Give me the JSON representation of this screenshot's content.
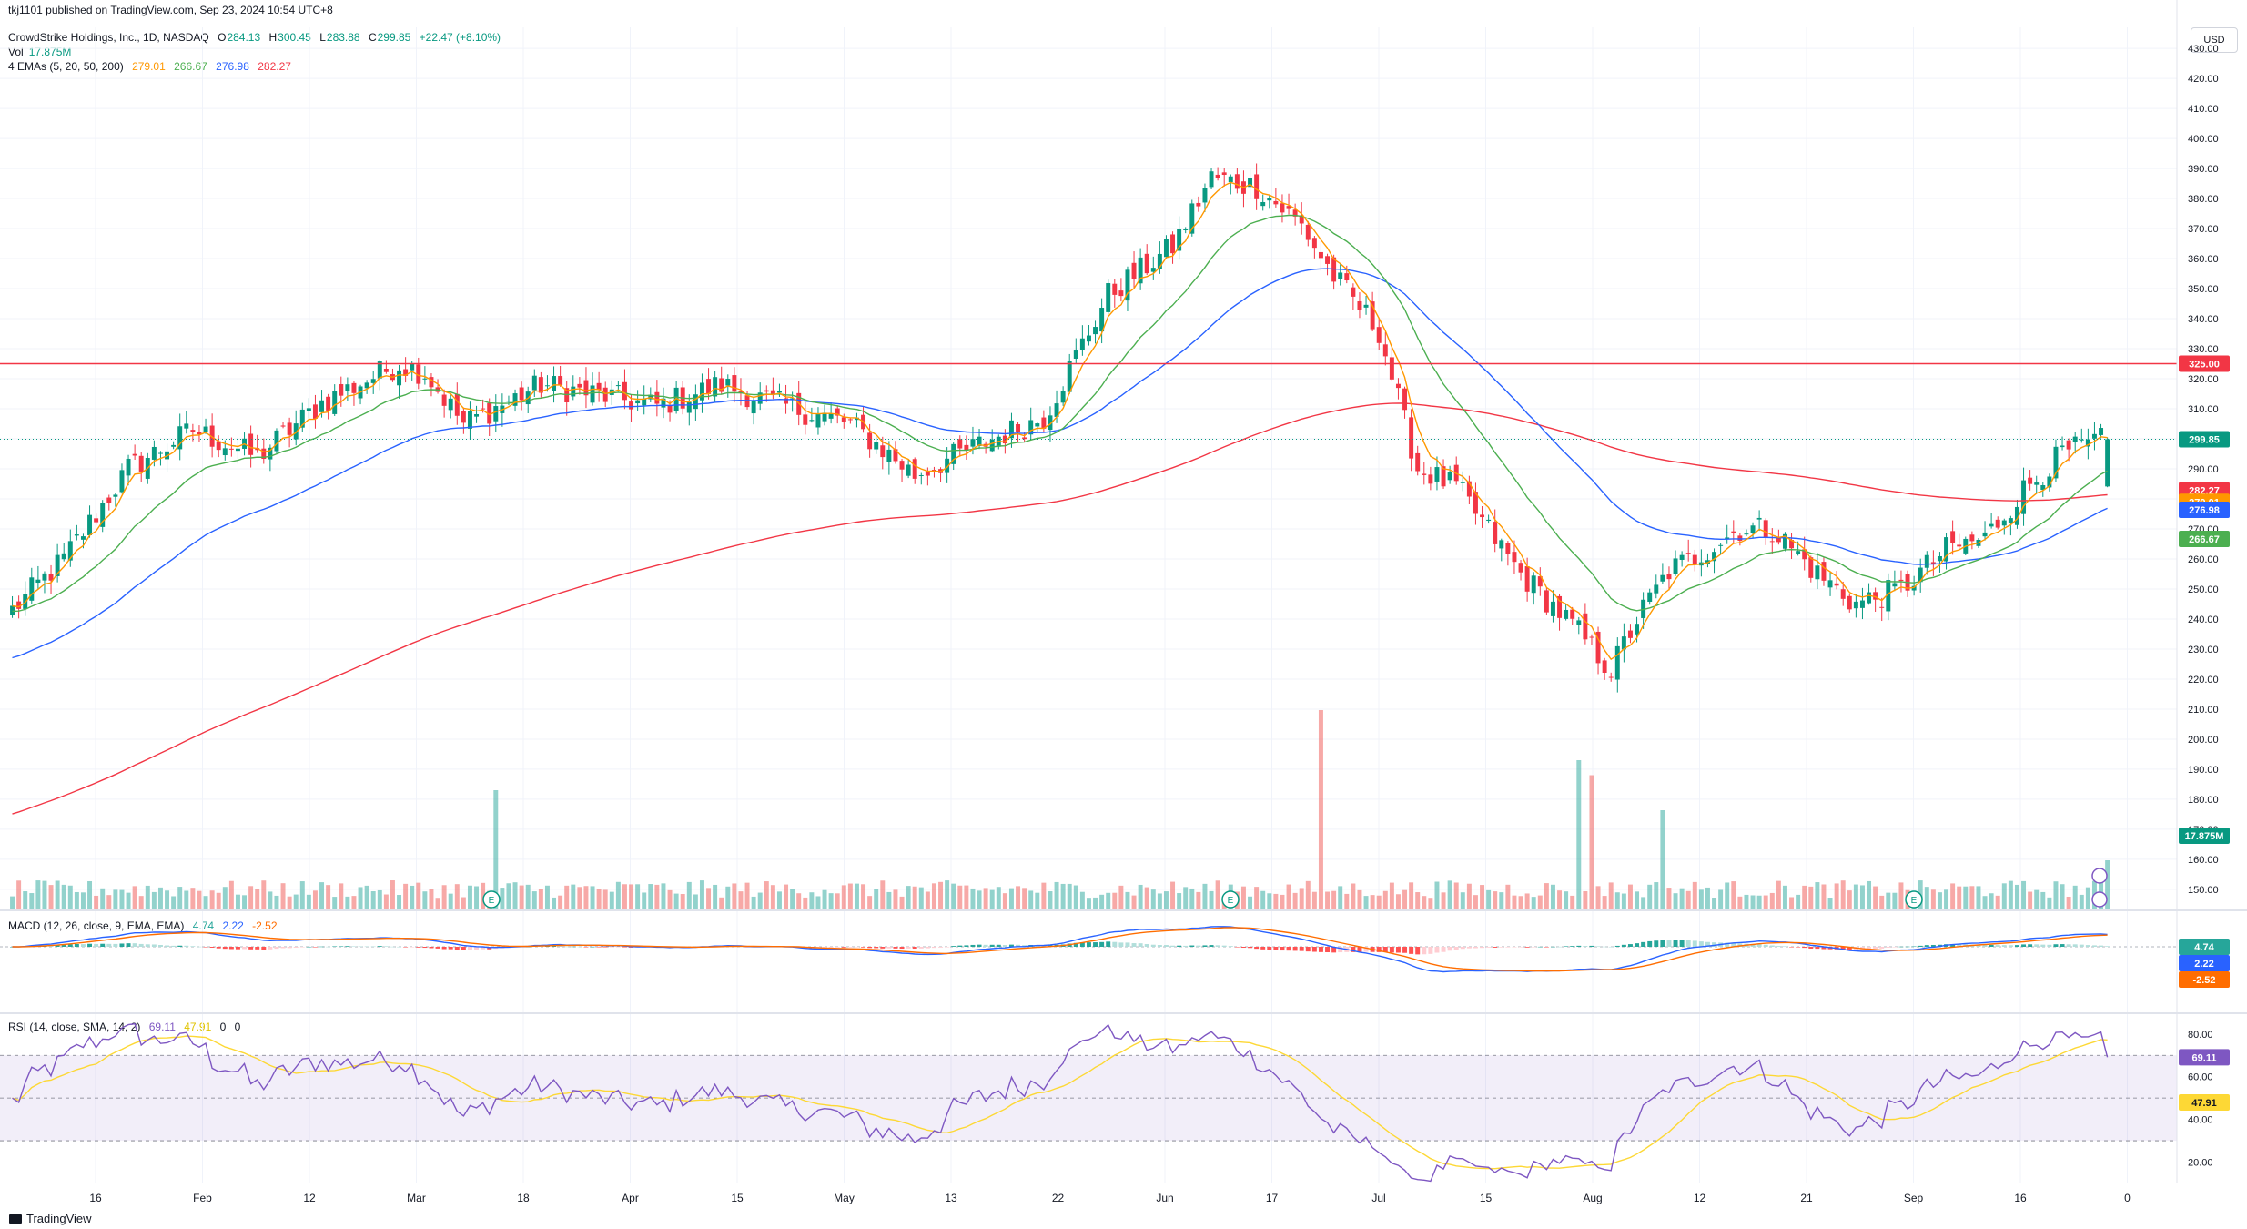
{
  "attribution": "tkj1101 published on TradingView.com, Sep 23, 2024 10:54 UTC+8",
  "symbol_line": "CrowdStrike Holdings, Inc., 1D, NASDAQ",
  "ohlc": {
    "o_label": "O",
    "o": "284.13",
    "h_label": "H",
    "h": "300.45",
    "l_label": "L",
    "l": "283.88",
    "c_label": "C",
    "c": "299.85",
    "change": "+22.47 (+8.10%)"
  },
  "vol": {
    "label": "Vol",
    "value": "17.875M"
  },
  "emas": {
    "label": "4 EMAs (5, 20, 50, 200)",
    "v5": "279.01",
    "v20": "266.67",
    "v50": "276.98",
    "v200": "282.27"
  },
  "macd": {
    "label": "MACD (12, 26, close, 9, EMA, EMA)",
    "hist": "4.74",
    "macd": "2.22",
    "signal": "-2.52"
  },
  "rsi": {
    "label": "RSI (14, close, SMA, 14, 2)",
    "rsi": "69.11",
    "ma": "47.91",
    "z1": "0",
    "z2": "0"
  },
  "currency": "USD",
  "logo": "TradingView",
  "colors": {
    "up": "#089981",
    "down": "#f23645",
    "ema5": "#ff9800",
    "ema20": "#4caf50",
    "ema50": "#2962ff",
    "ema200": "#f23645",
    "hline": "#f23645",
    "rsi": "#7e57c2",
    "rsi_ma": "#fdd835",
    "macd": "#2962ff",
    "signal": "#ff6d00"
  },
  "chart_data": [
    {
      "type": "candlestick",
      "title": "CrowdStrike Holdings, Inc., 1D, NASDAQ",
      "y_ticks": [
        150,
        160,
        170,
        180,
        190,
        200,
        210,
        220,
        230,
        240,
        250,
        260,
        270,
        280,
        290,
        300,
        310,
        320,
        330,
        340,
        350,
        360,
        370,
        380,
        390,
        400,
        410,
        420,
        430
      ],
      "ylim": [
        143,
        437
      ],
      "x_ticks": [
        "16",
        "Feb",
        "12",
        "Mar",
        "18",
        "Apr",
        "15",
        "May",
        "13",
        "22",
        "Jun",
        "17",
        "Jul",
        "15",
        "Aug",
        "12",
        "21",
        "Sep",
        "16",
        "0"
      ],
      "close_path": [
        [
          0,
          243
        ],
        [
          8,
          260
        ],
        [
          18,
          290
        ],
        [
          28,
          303
        ],
        [
          38,
          294
        ],
        [
          48,
          312
        ],
        [
          60,
          325
        ],
        [
          64,
          322
        ],
        [
          70,
          305
        ],
        [
          82,
          318
        ],
        [
          90,
          315
        ],
        [
          100,
          311
        ],
        [
          110,
          318
        ],
        [
          118,
          312
        ],
        [
          130,
          305
        ],
        [
          140,
          288
        ],
        [
          152,
          300
        ],
        [
          160,
          307
        ],
        [
          170,
          348
        ],
        [
          180,
          364
        ],
        [
          186,
          387
        ],
        [
          193,
          384
        ],
        [
          200,
          371
        ],
        [
          205,
          354
        ],
        [
          212,
          336
        ],
        [
          218,
          290
        ],
        [
          224,
          284
        ],
        [
          234,
          255
        ],
        [
          242,
          238
        ],
        [
          248,
          223
        ],
        [
          252,
          240
        ],
        [
          257,
          256
        ],
        [
          262,
          262
        ],
        [
          268,
          270
        ],
        [
          273,
          270
        ],
        [
          280,
          255
        ],
        [
          286,
          245
        ],
        [
          293,
          250
        ],
        [
          300,
          263
        ],
        [
          306,
          267
        ],
        [
          312,
          283
        ],
        [
          318,
          295
        ],
        [
          325,
          300
        ]
      ],
      "horizontal_line": {
        "value": 325.0,
        "label": "325.00"
      },
      "labels": {
        "last": "299.85",
        "ema200": "282.27",
        "ema5": "279.01",
        "ema50": "276.98",
        "ema20": "266.67",
        "volume": "17.875M"
      },
      "earnings_markers": [
        "E",
        "E",
        "E"
      ]
    },
    {
      "type": "bar",
      "title": "Vol",
      "last_value": "17.875M",
      "spikes": [
        [
          75,
          2.4
        ],
        [
          203,
          4.0
        ],
        [
          243,
          3.0
        ],
        [
          245,
          2.7
        ],
        [
          256,
          2.0
        ],
        [
          325,
          1.0
        ]
      ]
    },
    {
      "type": "line",
      "title": "MACD (12, 26, close, 9, EMA, EMA)",
      "series": [
        {
          "name": "Histogram",
          "last": 4.74
        },
        {
          "name": "MACD",
          "last": 2.22
        },
        {
          "name": "Signal",
          "last": -2.52
        }
      ]
    },
    {
      "type": "line",
      "title": "RSI (14, close, SMA, 14, 2)",
      "y_ticks": [
        20.0,
        40.0,
        60.0,
        80.0
      ],
      "bands": [
        30,
        70
      ],
      "ylim": [
        10,
        88
      ],
      "series": [
        {
          "name": "RSI",
          "last": 69.11
        },
        {
          "name": "RSI-based MA",
          "last": 47.91
        }
      ]
    }
  ]
}
